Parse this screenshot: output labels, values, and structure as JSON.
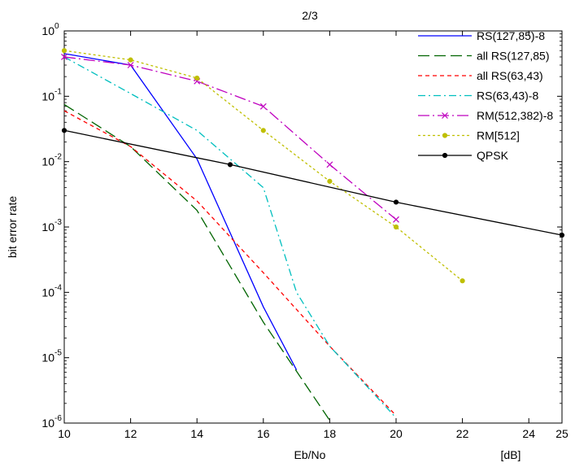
{
  "chart_data": {
    "type": "line",
    "title": "2/3",
    "xlabel": "Eb/No",
    "xunit": "[dB]",
    "ylabel": "bit error rate",
    "yscale": "log",
    "xlim": [
      10,
      25
    ],
    "ylim": [
      1e-06,
      1
    ],
    "xticks": [
      10,
      12,
      14,
      16,
      18,
      20,
      22,
      24,
      25
    ],
    "yticks": [
      {
        "value": 1,
        "base": "10",
        "exp": "0"
      },
      {
        "value": 0.1,
        "base": "10",
        "exp": "-1"
      },
      {
        "value": 0.01,
        "base": "10",
        "exp": "-2"
      },
      {
        "value": 0.001,
        "base": "10",
        "exp": "-3"
      },
      {
        "value": 0.0001,
        "base": "10",
        "exp": "-4"
      },
      {
        "value": 1e-05,
        "base": "10",
        "exp": "-5"
      },
      {
        "value": 1e-06,
        "base": "10",
        "exp": "-6"
      }
    ],
    "grid": false,
    "legend_position": "top-right",
    "series": [
      {
        "name": "RS(127,85)-8",
        "color": "#0000ff",
        "dash": "solid",
        "marker": "none",
        "x": [
          10,
          12,
          14,
          16,
          17
        ],
        "y": [
          0.45,
          0.3,
          0.011,
          6e-05,
          6.5e-06
        ]
      },
      {
        "name": "all RS(127,85)",
        "color": "#006400",
        "dash": "long",
        "marker": "none",
        "x": [
          10,
          12,
          14,
          16,
          18
        ],
        "y": [
          0.075,
          0.017,
          0.0018,
          3.5e-05,
          1.1e-06
        ]
      },
      {
        "name": "all RS(63,43)",
        "color": "#ff0000",
        "dash": "short",
        "marker": "none",
        "x": [
          10,
          12,
          14,
          16,
          18,
          20
        ],
        "y": [
          0.06,
          0.017,
          0.0025,
          0.0002,
          1.5e-05,
          1.3e-06
        ]
      },
      {
        "name": "RS(63,43)-8",
        "color": "#00bfbf",
        "dash": "dashdot",
        "marker": "none",
        "x": [
          10,
          12,
          14,
          16,
          17,
          18,
          20
        ],
        "y": [
          0.4,
          0.11,
          0.03,
          0.004,
          0.0001,
          1.5e-05,
          1.2e-06
        ]
      },
      {
        "name": "RM(512,382)-8",
        "color": "#bf00bf",
        "dash": "dashdotlong",
        "marker": "x",
        "x": [
          10,
          12,
          14,
          16,
          18,
          20
        ],
        "y": [
          0.4,
          0.3,
          0.17,
          0.07,
          0.009,
          0.0013
        ]
      },
      {
        "name": "RM[512]",
        "color": "#bfbf00",
        "dash": "dotted",
        "marker": "dot",
        "x": [
          10,
          12,
          14,
          16,
          18,
          20,
          22
        ],
        "y": [
          0.5,
          0.36,
          0.19,
          0.03,
          0.005,
          0.001,
          0.00015
        ]
      },
      {
        "name": "QPSK",
        "color": "#000000",
        "dash": "solid",
        "marker": "dot",
        "x": [
          10,
          15,
          20,
          25
        ],
        "y": [
          0.03,
          0.009,
          0.0024,
          0.00075
        ]
      }
    ]
  }
}
